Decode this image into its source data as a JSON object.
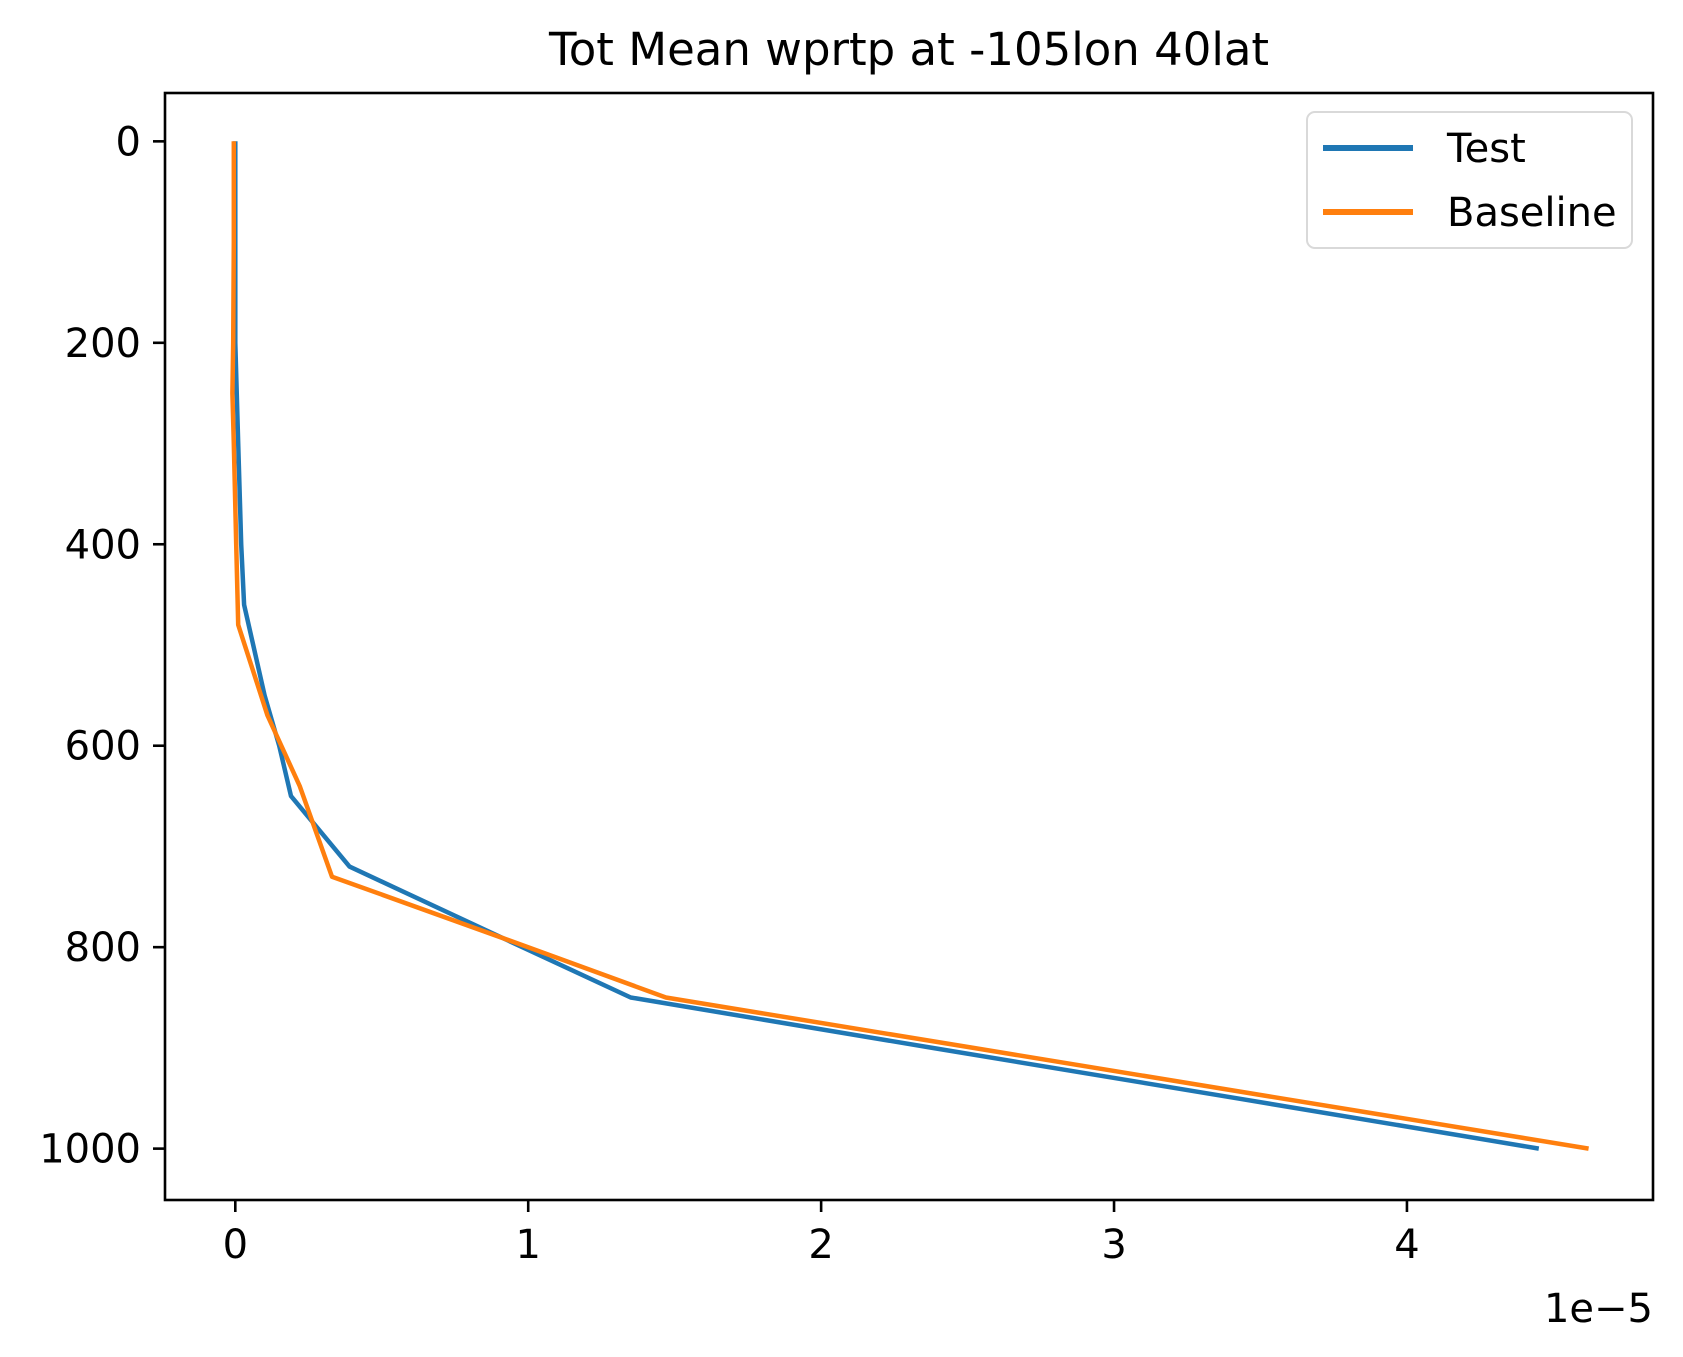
{
  "figure": {
    "background": "#ffffff"
  },
  "chart_data": {
    "type": "line",
    "title": "Tot Mean wprtp at -105lon 40lat",
    "xlabel": "",
    "ylabel": "",
    "x_offset_label": "1e−5",
    "x_units_multiplier": 1e-05,
    "x_ticks": [
      0,
      1,
      2,
      3,
      4
    ],
    "y_ticks": [
      0,
      200,
      400,
      600,
      800,
      1000
    ],
    "xlim": [
      -0.24,
      4.84
    ],
    "ylim_top": -48,
    "ylim_bottom": 1051,
    "y_axis_inverted": true,
    "grid": false,
    "legend_position": "upper right",
    "axis_color": "#000000",
    "legend_border_color": "#d9d9d9",
    "series": [
      {
        "name": "Test",
        "color": "#1f77b4",
        "x": [
          0.0,
          0.0,
          0.0,
          0.01,
          0.02,
          0.03,
          0.1,
          0.15,
          0.19,
          0.39,
          0.98,
          1.35,
          2.38,
          3.42,
          4.45
        ],
        "y": [
          0,
          100,
          200,
          300,
          400,
          460,
          550,
          600,
          650,
          720,
          800,
          850,
          900,
          950,
          1000
        ]
      },
      {
        "name": "Baseline",
        "color": "#ff7f0e",
        "x": [
          -0.005,
          -0.005,
          -0.007,
          -0.01,
          -0.005,
          0.003,
          0.01,
          0.11,
          0.22,
          0.33,
          1.0,
          1.47,
          2.52,
          3.57,
          4.62
        ],
        "y": [
          0,
          100,
          200,
          250,
          300,
          400,
          480,
          570,
          640,
          730,
          800,
          850,
          900,
          950,
          1000
        ]
      }
    ]
  }
}
